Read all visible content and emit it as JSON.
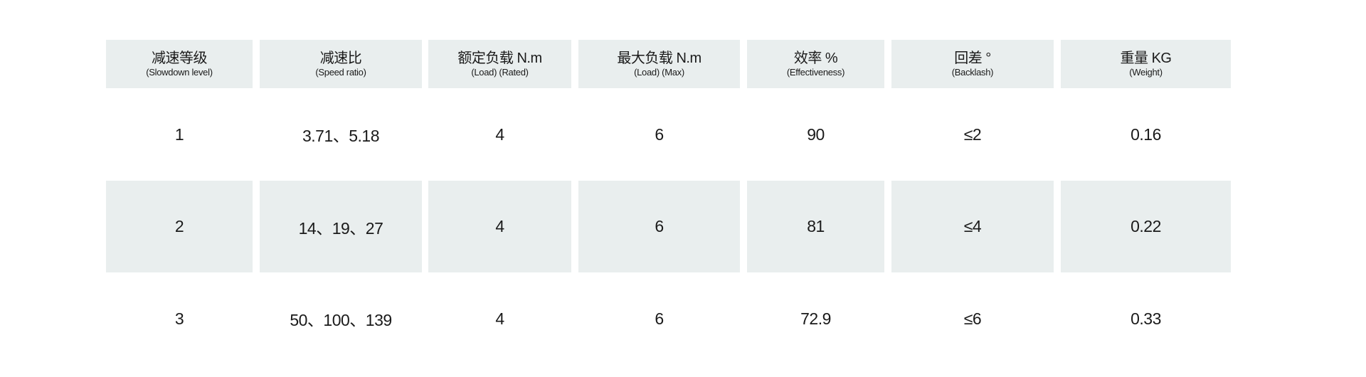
{
  "table": {
    "headers": [
      {
        "main": "减速等级",
        "sub": "(Slowdown level)"
      },
      {
        "main": "减速比",
        "sub": "(Speed ratio)"
      },
      {
        "main": "额定负载 N.m",
        "sub": "(Load) (Rated)"
      },
      {
        "main": "最大负载 N.m",
        "sub": "(Load) (Max)"
      },
      {
        "main": "效率 %",
        "sub": "(Effectiveness)"
      },
      {
        "main": "回差 °",
        "sub": "(Backlash)"
      },
      {
        "main": "重量 KG",
        "sub": "(Weight)"
      }
    ],
    "rows": [
      [
        "1",
        "3.71、5.18",
        "4",
        "6",
        "90",
        "≤2",
        "0.16"
      ],
      [
        "2",
        "14、19、27",
        "4",
        "6",
        "81",
        "≤4",
        "0.22"
      ],
      [
        "3",
        "50、100、139",
        "4",
        "6",
        "72.9",
        "≤6",
        "0.33"
      ]
    ],
    "colors": {
      "header_bg": "#e9eeee",
      "shaded_row_bg": "#e9eeee",
      "text": "#1a1a1a"
    }
  }
}
